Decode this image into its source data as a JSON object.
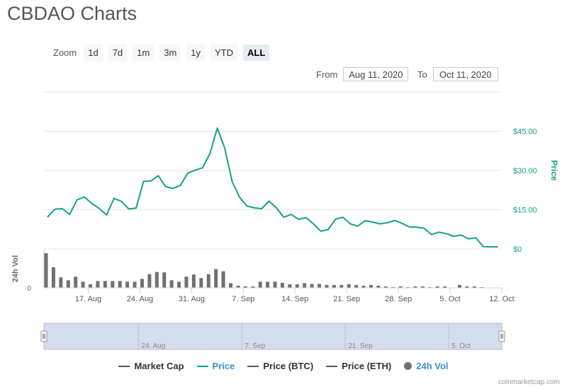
{
  "title": "CBDAO Charts",
  "zoom": {
    "label": "Zoom",
    "buttons": [
      "1d",
      "7d",
      "1m",
      "3m",
      "1y",
      "YTD",
      "ALL"
    ],
    "active": "ALL"
  },
  "range": {
    "from_label": "From",
    "from_value": "Aug 11, 2020",
    "to_label": "To",
    "to_value": "Oct 11, 2020"
  },
  "watermark": "coinmarketcap.com",
  "colors": {
    "price": "#16a085",
    "volume": "#707070",
    "grid": "#e6e6e6",
    "navigator_fill": "#ccd6eb",
    "navigator_border": "#b0bcd6",
    "market_cap": "#555555",
    "price_btc": "#555555",
    "price_eth": "#555555"
  },
  "legend": [
    {
      "label": "Market Cap",
      "kind": "line",
      "color_key": "market_cap"
    },
    {
      "label": "Price",
      "kind": "line",
      "color_key": "price"
    },
    {
      "label": "Price (BTC)",
      "kind": "line",
      "color_key": "price_btc"
    },
    {
      "label": "Price (ETH)",
      "kind": "line",
      "color_key": "price_eth"
    },
    {
      "label": "24h Vol",
      "kind": "dot",
      "color_key": "volume"
    }
  ],
  "chart_data": {
    "type": "line",
    "price_axis": {
      "label": "Price",
      "ticks": [
        0,
        15,
        30,
        45
      ],
      "tick_labels": [
        "$0",
        "$15.00",
        "$30.00",
        "$45.00"
      ],
      "ylim": [
        0,
        60
      ]
    },
    "volume_axis": {
      "label": "24h Vol",
      "tick_labels": [
        "0"
      ],
      "ylim": [
        0,
        1
      ]
    },
    "x_axis": {
      "start": "2020-08-11",
      "end": "2020-10-12",
      "tick_dates": [
        "2020-08-17",
        "2020-08-24",
        "2020-08-31",
        "2020-09-07",
        "2020-09-14",
        "2020-09-21",
        "2020-09-28",
        "2020-10-05",
        "2020-10-12"
      ],
      "tick_labels": [
        "17. Aug",
        "24. Aug",
        "31. Aug",
        "7. Sep",
        "14. Sep",
        "21. Sep",
        "28. Sep",
        "5. Oct",
        "12. Oct"
      ]
    },
    "series": [
      {
        "name": "Price",
        "x": [
          "2020-08-11",
          "2020-08-12",
          "2020-08-13",
          "2020-08-14",
          "2020-08-15",
          "2020-08-16",
          "2020-08-17",
          "2020-08-18",
          "2020-08-19",
          "2020-08-20",
          "2020-08-21",
          "2020-08-22",
          "2020-08-23",
          "2020-08-24",
          "2020-08-25",
          "2020-08-26",
          "2020-08-27",
          "2020-08-28",
          "2020-08-29",
          "2020-08-30",
          "2020-08-31",
          "2020-09-01",
          "2020-09-02",
          "2020-09-03",
          "2020-09-04",
          "2020-09-05",
          "2020-09-06",
          "2020-09-07",
          "2020-09-08",
          "2020-09-09",
          "2020-09-10",
          "2020-09-11",
          "2020-09-12",
          "2020-09-13",
          "2020-09-14",
          "2020-09-15",
          "2020-09-16",
          "2020-09-17",
          "2020-09-18",
          "2020-09-19",
          "2020-09-20",
          "2020-09-21",
          "2020-09-22",
          "2020-09-23",
          "2020-09-24",
          "2020-09-25",
          "2020-09-26",
          "2020-09-27",
          "2020-09-28",
          "2020-09-29",
          "2020-09-30",
          "2020-10-01",
          "2020-10-02",
          "2020-10-03",
          "2020-10-04",
          "2020-10-05",
          "2020-10-06",
          "2020-10-07",
          "2020-10-08",
          "2020-10-09",
          "2020-10-10",
          "2020-10-11"
        ],
        "values": [
          12.2,
          15.2,
          15.4,
          13.2,
          18.8,
          19.8,
          17.4,
          15.5,
          13.0,
          19.3,
          18.2,
          15.3,
          15.6,
          25.8,
          26.0,
          28.0,
          23.8,
          23.1,
          24.3,
          29.0,
          30.1,
          31.0,
          36.5,
          46.2,
          38.5,
          25.8,
          19.8,
          16.4,
          15.7,
          15.4,
          18.3,
          15.7,
          12.1,
          13.2,
          11.3,
          12.0,
          9.6,
          6.8,
          7.4,
          11.4,
          12.1,
          9.6,
          8.7,
          10.8,
          10.3,
          9.6,
          10.0,
          10.9,
          9.8,
          8.4,
          8.3,
          7.9,
          5.5,
          6.4,
          5.9,
          4.8,
          5.3,
          3.9,
          4.3,
          0.9,
          0.8,
          0.8
        ]
      },
      {
        "name": "24h Vol",
        "x": [
          "2020-08-11",
          "2020-08-12",
          "2020-08-13",
          "2020-08-14",
          "2020-08-15",
          "2020-08-16",
          "2020-08-17",
          "2020-08-18",
          "2020-08-19",
          "2020-08-20",
          "2020-08-21",
          "2020-08-22",
          "2020-08-23",
          "2020-08-24",
          "2020-08-25",
          "2020-08-26",
          "2020-08-27",
          "2020-08-28",
          "2020-08-29",
          "2020-08-30",
          "2020-08-31",
          "2020-09-01",
          "2020-09-02",
          "2020-09-03",
          "2020-09-04",
          "2020-09-05",
          "2020-09-06",
          "2020-09-07",
          "2020-09-08",
          "2020-09-09",
          "2020-09-10",
          "2020-09-11",
          "2020-09-12",
          "2020-09-13",
          "2020-09-14",
          "2020-09-15",
          "2020-09-16",
          "2020-09-17",
          "2020-09-18",
          "2020-09-19",
          "2020-09-20",
          "2020-09-21",
          "2020-09-22",
          "2020-09-23",
          "2020-09-24",
          "2020-09-25",
          "2020-09-26",
          "2020-09-27",
          "2020-09-28",
          "2020-09-29",
          "2020-09-30",
          "2020-10-01",
          "2020-10-02",
          "2020-10-03",
          "2020-10-04",
          "2020-10-05",
          "2020-10-06",
          "2020-10-07",
          "2020-10-08",
          "2020-10-09",
          "2020-10-10",
          "2020-10-11"
        ],
        "values": [
          0.96,
          0.57,
          0.29,
          0.21,
          0.31,
          0.17,
          0.1,
          0.19,
          0.19,
          0.19,
          0.19,
          0.17,
          0.17,
          0.25,
          0.38,
          0.44,
          0.43,
          0.21,
          0.17,
          0.31,
          0.37,
          0.27,
          0.38,
          0.52,
          0.46,
          0.13,
          0.06,
          0.04,
          0.04,
          0.17,
          0.17,
          0.17,
          0.14,
          0.1,
          0.1,
          0.13,
          0.11,
          0.11,
          0.08,
          0.08,
          0.08,
          0.1,
          0.08,
          0.06,
          0.08,
          0.06,
          0.04,
          0.02,
          0.04,
          0.02,
          0.04,
          0.04,
          0.02,
          0.04,
          0.04,
          0.0,
          0.08,
          0.04,
          0.04,
          0.02,
          0.0,
          0.0
        ]
      }
    ],
    "navigator": {
      "tick_labels": [
        "24. Aug",
        "7. Sep",
        "21. Sep",
        "5. Oct"
      ],
      "tick_dates": [
        "2020-08-24",
        "2020-09-07",
        "2020-09-21",
        "2020-10-05"
      ]
    },
    "grid": true,
    "legend_position": "bottom"
  }
}
